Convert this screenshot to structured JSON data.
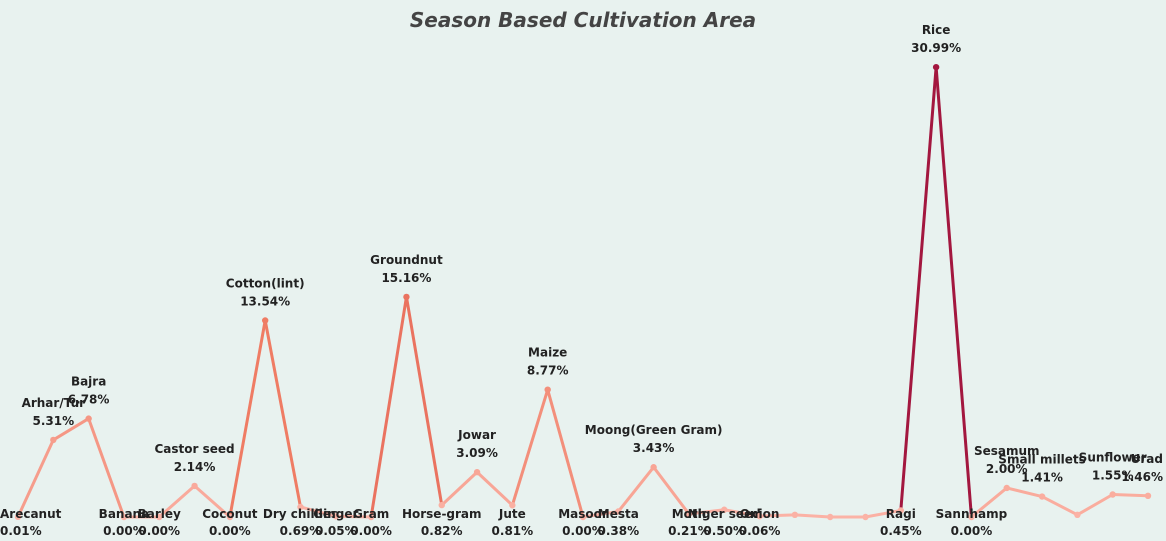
{
  "chart_data": {
    "type": "line",
    "title": "Season Based Cultivation Area",
    "xlabel": "",
    "ylabel": "",
    "ylim": [
      0,
      31
    ],
    "grid": false,
    "legend": "none",
    "colors": {
      "low": "#fbb3a6",
      "mid": "#ef7a62",
      "high": "#a3173f",
      "background": "#e8f2ef"
    },
    "points": [
      {
        "crop": "Arecanut",
        "value": 0.01,
        "label": "0.01%"
      },
      {
        "crop": "Arhar/Tur",
        "value": 5.31,
        "label": "5.31%"
      },
      {
        "crop": "Bajra",
        "value": 6.78,
        "label": "6.78%"
      },
      {
        "crop": "Banana",
        "value": 0.0,
        "label": "0.00%"
      },
      {
        "crop": "Barley",
        "value": 0.0,
        "label": "0.00%"
      },
      {
        "crop": "Castor seed",
        "value": 2.14,
        "label": "2.14%"
      },
      {
        "crop": "Coconut",
        "value": 0.0,
        "label": "0.00%"
      },
      {
        "crop": "Cotton(lint)",
        "value": 13.54,
        "label": "13.54%"
      },
      {
        "crop": "Dry chillies",
        "value": 0.69,
        "label": "0.69%"
      },
      {
        "crop": "Ginger",
        "value": 0.05,
        "label": "0.05%"
      },
      {
        "crop": "Gram",
        "value": 0.0,
        "label": "0.00%"
      },
      {
        "crop": "Groundnut",
        "value": 15.16,
        "label": "15.16%"
      },
      {
        "crop": "Horse-gram",
        "value": 0.82,
        "label": "0.82%"
      },
      {
        "crop": "Jowar",
        "value": 3.09,
        "label": "3.09%"
      },
      {
        "crop": "Jute",
        "value": 0.81,
        "label": "0.81%"
      },
      {
        "crop": "Maize",
        "value": 8.77,
        "label": "8.77%"
      },
      {
        "crop": "Masoor",
        "value": 0.0,
        "label": "0.00%"
      },
      {
        "crop": "Mesta",
        "value": 0.38,
        "label": "0.38%"
      },
      {
        "crop": "Moong(Green Gram)",
        "value": 3.43,
        "label": "3.43%"
      },
      {
        "crop": "Moth",
        "value": 0.21,
        "label": "0.21%"
      },
      {
        "crop": "Niger seed",
        "value": 0.5,
        "label": "0.50%"
      },
      {
        "crop": "Onion",
        "value": 0.06,
        "label": "0.06%"
      },
      {
        "crop": "",
        "value": 0.15,
        "label": ""
      },
      {
        "crop": "",
        "value": 0.0,
        "label": ""
      },
      {
        "crop": "",
        "value": 0.0,
        "label": ""
      },
      {
        "crop": "Ragi",
        "value": 0.45,
        "label": "0.45%"
      },
      {
        "crop": "Rice",
        "value": 30.99,
        "label": "30.99%"
      },
      {
        "crop": "Sannhamp",
        "value": 0.0,
        "label": "0.00%"
      },
      {
        "crop": "Sesamum",
        "value": 2.0,
        "label": "2.00%"
      },
      {
        "crop": "Small millets",
        "value": 1.41,
        "label": "1.41%"
      },
      {
        "crop": "",
        "value": 0.15,
        "label": ""
      },
      {
        "crop": "Sunflower",
        "value": 1.55,
        "label": "1.55%"
      },
      {
        "crop": "Urad",
        "value": 1.46,
        "label": "1.46%"
      }
    ]
  }
}
